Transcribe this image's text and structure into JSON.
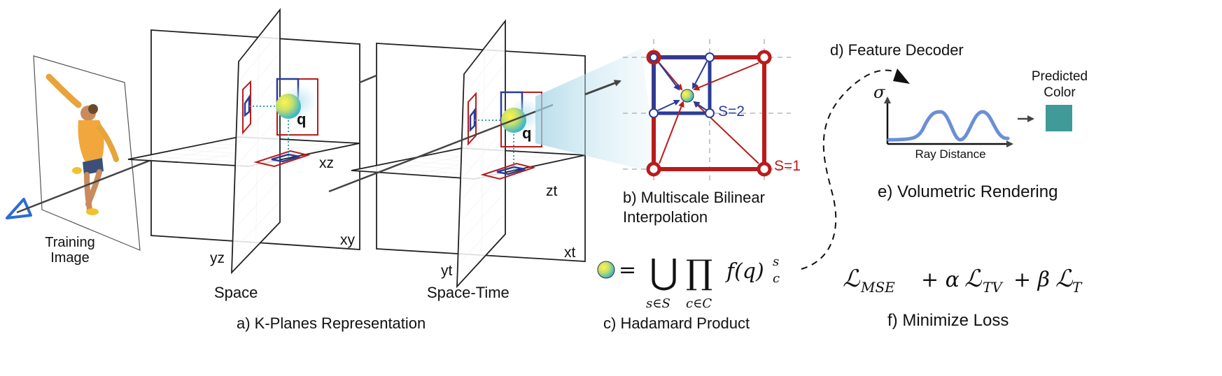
{
  "training": {
    "label_line1": "Training",
    "label_line2": "Image"
  },
  "space": {
    "title": "Space",
    "xy": "xy",
    "xz": "xz",
    "yz": "yz",
    "query": "q"
  },
  "spacetime": {
    "title": "Space-Time",
    "xt": "xt",
    "zt": "zt",
    "yt": "yt",
    "query": "q"
  },
  "captions": {
    "a": "a) K-Planes Representation",
    "b_line1": "b) Multiscale Bilinear",
    "b_line2": "Interpolation",
    "c": "c) Hadamard Product",
    "d": "d) Feature Decoder",
    "e": "e) Volumetric Rendering",
    "f": "f) Minimize Loss"
  },
  "interp": {
    "scale2": "S=2",
    "scale1": "S=1"
  },
  "render": {
    "sigma": "σ",
    "x_axis": "Ray Distance",
    "pred_line1": "Predicted",
    "pred_line2": "Color"
  },
  "formula": {
    "eq": "=",
    "union": "⋃",
    "prod": "∏",
    "sub_union": "s∈S",
    "sub_prod": "c∈C",
    "f": "f(q)",
    "sup": "s",
    "sub": "c"
  },
  "loss": {
    "L": "ℒ",
    "mse": "MSE",
    "plus_alpha": "+ α",
    "tv": "TV",
    "plus_beta": "+ β",
    "t": "T"
  },
  "colors": {
    "red": "#b81c1c",
    "blue": "#2a3c9a",
    "teal": "#3f9a98",
    "curve": "#6b8fd6"
  }
}
